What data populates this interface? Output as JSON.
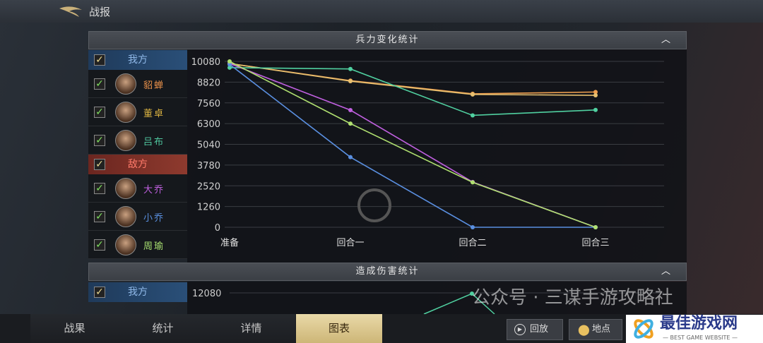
{
  "header": {
    "title": "战报"
  },
  "troop_panel": {
    "title": "兵力变化统计",
    "my_team": "我方",
    "enemy_team": "敌方",
    "my_heroes": [
      {
        "name": "貂蝉",
        "color": "#e8904a"
      },
      {
        "name": "董卓",
        "color": "#d8b040"
      },
      {
        "name": "吕布",
        "color": "#50c8a0"
      }
    ],
    "enemy_heroes": [
      {
        "name": "大乔",
        "color": "#c060e0"
      },
      {
        "name": "小乔",
        "color": "#5a90e0"
      },
      {
        "name": "周瑜",
        "color": "#a8e070"
      }
    ]
  },
  "chart_data": {
    "type": "line",
    "categories": [
      "准备",
      "回合一",
      "回合二",
      "回合三"
    ],
    "yticks": [
      "0",
      "1260",
      "2520",
      "3780",
      "5040",
      "6300",
      "7560",
      "8820",
      "10080"
    ],
    "ylim": [
      0,
      10080
    ],
    "grid": true,
    "series": [
      {
        "name": "貂蝉",
        "color": "#f0a050",
        "values": [
          9950,
          8910,
          8110,
          8220
        ]
      },
      {
        "name": "董卓",
        "color": "#e8c070",
        "values": [
          9950,
          8880,
          8070,
          8020
        ]
      },
      {
        "name": "吕布",
        "color": "#50d0a0",
        "values": [
          9700,
          9620,
          6800,
          7130
        ]
      },
      {
        "name": "大乔",
        "color": "#c060e0",
        "values": [
          9950,
          7120,
          2750,
          0
        ]
      },
      {
        "name": "小乔",
        "color": "#5a8fe0",
        "values": [
          9900,
          4260,
          0,
          0
        ]
      },
      {
        "name": "周瑜",
        "color": "#b0e070",
        "values": [
          10080,
          6300,
          2730,
          0
        ]
      }
    ]
  },
  "damage_panel": {
    "title": "造成伤害统计",
    "my_team": "我方",
    "ytick": "12080"
  },
  "tabs": [
    {
      "label": "战果"
    },
    {
      "label": "统计"
    },
    {
      "label": "详情"
    },
    {
      "label": "图表"
    }
  ],
  "buttons": {
    "replay": "回放",
    "location": "地点"
  },
  "watermark": "公众号 · 三谋手游攻略社",
  "logo": {
    "text": "最佳游戏网",
    "sub": "— BEST GAME WEBSITE —"
  }
}
